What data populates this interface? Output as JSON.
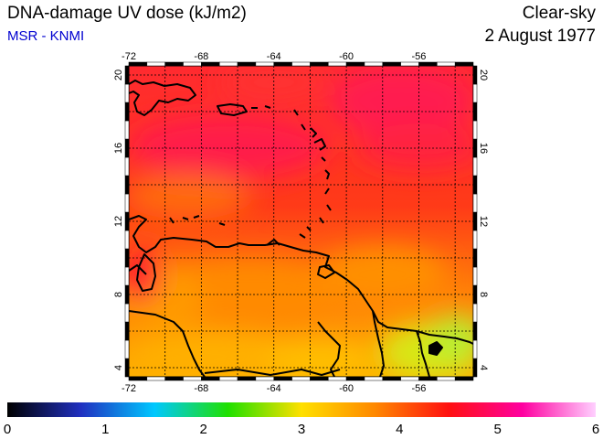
{
  "header": {
    "title": "DNA-damage UV dose (kJ/m2)",
    "subtitle": "MSR - KNMI",
    "sky": "Clear-sky",
    "date": "2 August 1977"
  },
  "map": {
    "lon_range": [
      -72,
      -53
    ],
    "lat_range": [
      3.5,
      20.5
    ],
    "lon_ticks": [
      -72,
      -68,
      -64,
      -60,
      -56
    ],
    "lat_ticks": [
      4,
      8,
      12,
      16,
      20
    ],
    "lon_tick_labels": [
      "-72",
      "-68",
      "-64",
      "-60",
      "-56"
    ],
    "lat_tick_labels": [
      "4",
      "8",
      "12",
      "16",
      "20"
    ],
    "grid": true,
    "field_colors": {
      "magenta_red": "#ff1a4a",
      "red": "#ff2020",
      "red_orange": "#ff4a10",
      "orange": "#ff8a00",
      "yellow_orange": "#ffc000",
      "yellow_green": "#c8ee20"
    }
  },
  "colorbar": {
    "range": [
      0,
      6
    ],
    "tick_labels": [
      "0",
      "1",
      "2",
      "3",
      "4",
      "5",
      "6"
    ],
    "stops": [
      "#000000",
      "#2030c0",
      "#00c8ff",
      "#20e000",
      "#ffe000",
      "#ff8800",
      "#ff1010",
      "#ff00a0",
      "#ffd0ff"
    ]
  }
}
